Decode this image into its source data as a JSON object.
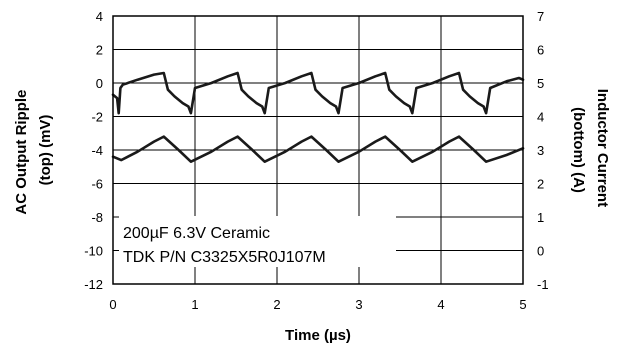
{
  "chart_data": {
    "type": "line",
    "xlabel": "Time (µs)",
    "ylabel_left_parts": [
      "AC Output Ripple",
      "(top)  (mV)"
    ],
    "ylabel_right_parts": [
      "Inductor Current",
      "(bottom)  (A)"
    ],
    "xlim": [
      0,
      5
    ],
    "ylim_left": [
      -12,
      4
    ],
    "ylim_right": [
      -1,
      7
    ],
    "xticks": [
      "0",
      "1",
      "2",
      "3",
      "4",
      "5"
    ],
    "yticks_left": [
      "4",
      "2",
      "0",
      "-2",
      "-4",
      "-6",
      "-8",
      "-10",
      "-12"
    ],
    "yticks_right": [
      "7",
      "6",
      "5",
      "4",
      "3",
      "2",
      "1",
      "0",
      "-1"
    ],
    "grid": true,
    "annotation_lines": [
      "200µF 6.3V Ceramic",
      "TDK P/N C3325X5R0J107M"
    ],
    "series": [
      {
        "axis": "left",
        "x": [
          0,
          0.05,
          0.07,
          0.09,
          0.12,
          0.3,
          0.5,
          0.62,
          0.67,
          0.75,
          0.8,
          0.85,
          0.92,
          0.95,
          1.0,
          1.2,
          1.4,
          1.52,
          1.57,
          1.65,
          1.7,
          1.75,
          1.82,
          1.85,
          1.9,
          2.1,
          2.3,
          2.42,
          2.47,
          2.55,
          2.6,
          2.65,
          2.72,
          2.75,
          2.8,
          3.0,
          3.2,
          3.32,
          3.37,
          3.45,
          3.5,
          3.55,
          3.62,
          3.65,
          3.7,
          3.9,
          4.1,
          4.22,
          4.27,
          4.35,
          4.4,
          4.45,
          4.52,
          4.55,
          4.6,
          4.8,
          4.95,
          5.0
        ],
        "values": [
          -0.7,
          -0.9,
          -1.8,
          -0.3,
          -0.1,
          0.2,
          0.5,
          0.6,
          -0.4,
          -0.8,
          -1.0,
          -1.2,
          -1.4,
          -1.8,
          -0.3,
          0.0,
          0.4,
          0.6,
          -0.4,
          -0.8,
          -1.0,
          -1.2,
          -1.4,
          -1.8,
          -0.3,
          0.0,
          0.4,
          0.6,
          -0.4,
          -0.8,
          -1.0,
          -1.2,
          -1.4,
          -1.8,
          -0.3,
          0.0,
          0.4,
          0.6,
          -0.4,
          -0.8,
          -1.0,
          -1.2,
          -1.4,
          -1.8,
          -0.3,
          0.0,
          0.4,
          0.6,
          -0.4,
          -0.8,
          -1.0,
          -1.2,
          -1.4,
          -1.8,
          -0.3,
          0.1,
          0.3,
          0.2
        ]
      },
      {
        "axis": "right",
        "x": [
          0,
          0.1,
          0.3,
          0.5,
          0.62,
          0.8,
          0.95,
          1.2,
          1.4,
          1.52,
          1.7,
          1.85,
          2.1,
          2.3,
          2.42,
          2.6,
          2.75,
          3.0,
          3.2,
          3.32,
          3.5,
          3.65,
          3.9,
          4.1,
          4.22,
          4.4,
          4.55,
          4.8,
          5.0
        ],
        "values": [
          2.8,
          2.7,
          2.95,
          3.25,
          3.4,
          3.0,
          2.65,
          2.95,
          3.25,
          3.4,
          3.0,
          2.65,
          2.95,
          3.25,
          3.4,
          3.0,
          2.65,
          2.95,
          3.25,
          3.4,
          3.0,
          2.65,
          2.95,
          3.25,
          3.4,
          3.0,
          2.65,
          2.85,
          3.05
        ]
      }
    ]
  }
}
